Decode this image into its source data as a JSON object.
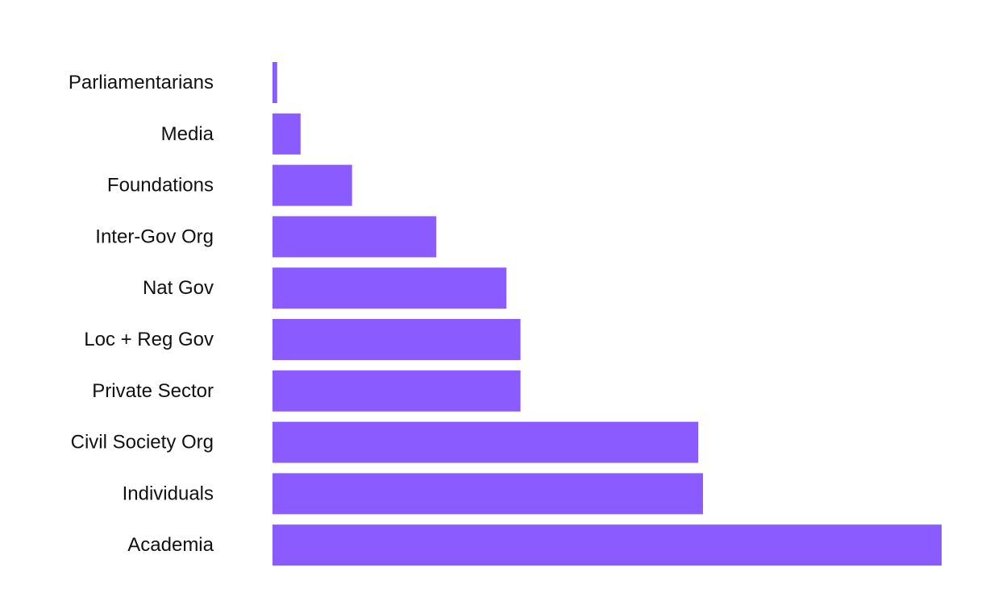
{
  "chart_data": {
    "type": "bar",
    "orientation": "horizontal",
    "title": "",
    "xlabel": "",
    "ylabel": "",
    "categories": [
      "Parliamentarians",
      "Media",
      "Foundations",
      "Inter-Gov Org",
      "Nat Gov",
      "Loc + Reg Gov",
      "Private Sector",
      "Civil Society Org",
      "Individuals",
      "Academia"
    ],
    "values": [
      1,
      6,
      17,
      35,
      50,
      53,
      53,
      91,
      92,
      143
    ],
    "xlim": [
      0,
      143
    ],
    "bar_color": "#8a5cff",
    "grid": false,
    "legend": "none",
    "axis_ticks_visible": false
  }
}
